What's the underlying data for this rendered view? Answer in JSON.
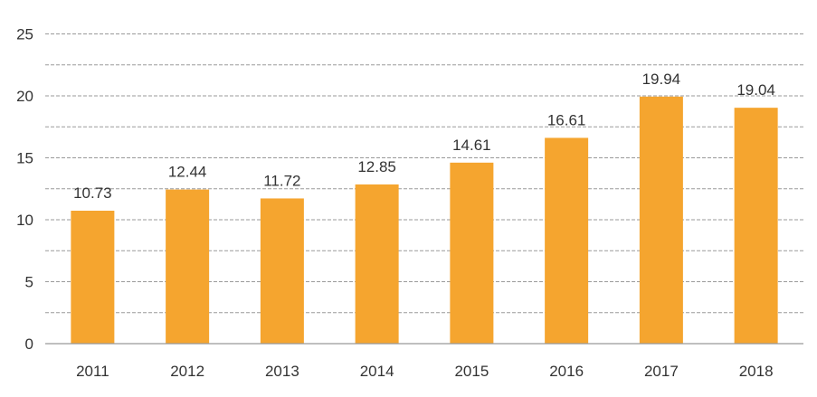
{
  "chart_data": {
    "type": "bar",
    "title": "",
    "xlabel": "",
    "ylabel": "",
    "categories": [
      "2011",
      "2012",
      "2013",
      "2014",
      "2015",
      "2016",
      "2017",
      "2018"
    ],
    "values": [
      10.73,
      12.44,
      11.72,
      12.85,
      14.61,
      16.61,
      19.94,
      19.04
    ],
    "data_labels": [
      "10.73",
      "12.44",
      "11.72",
      "12.85",
      "14.61",
      "16.61",
      "19.94",
      "19.04"
    ],
    "ylim": [
      0,
      25
    ],
    "yticks": [
      0,
      5,
      10,
      15,
      20,
      25
    ],
    "grid": "dashed horizontal every 2.5",
    "legend": "none",
    "colors": {
      "bar": "#F5A52F",
      "grid": "#9a9a9a",
      "axis": "#999999"
    }
  }
}
